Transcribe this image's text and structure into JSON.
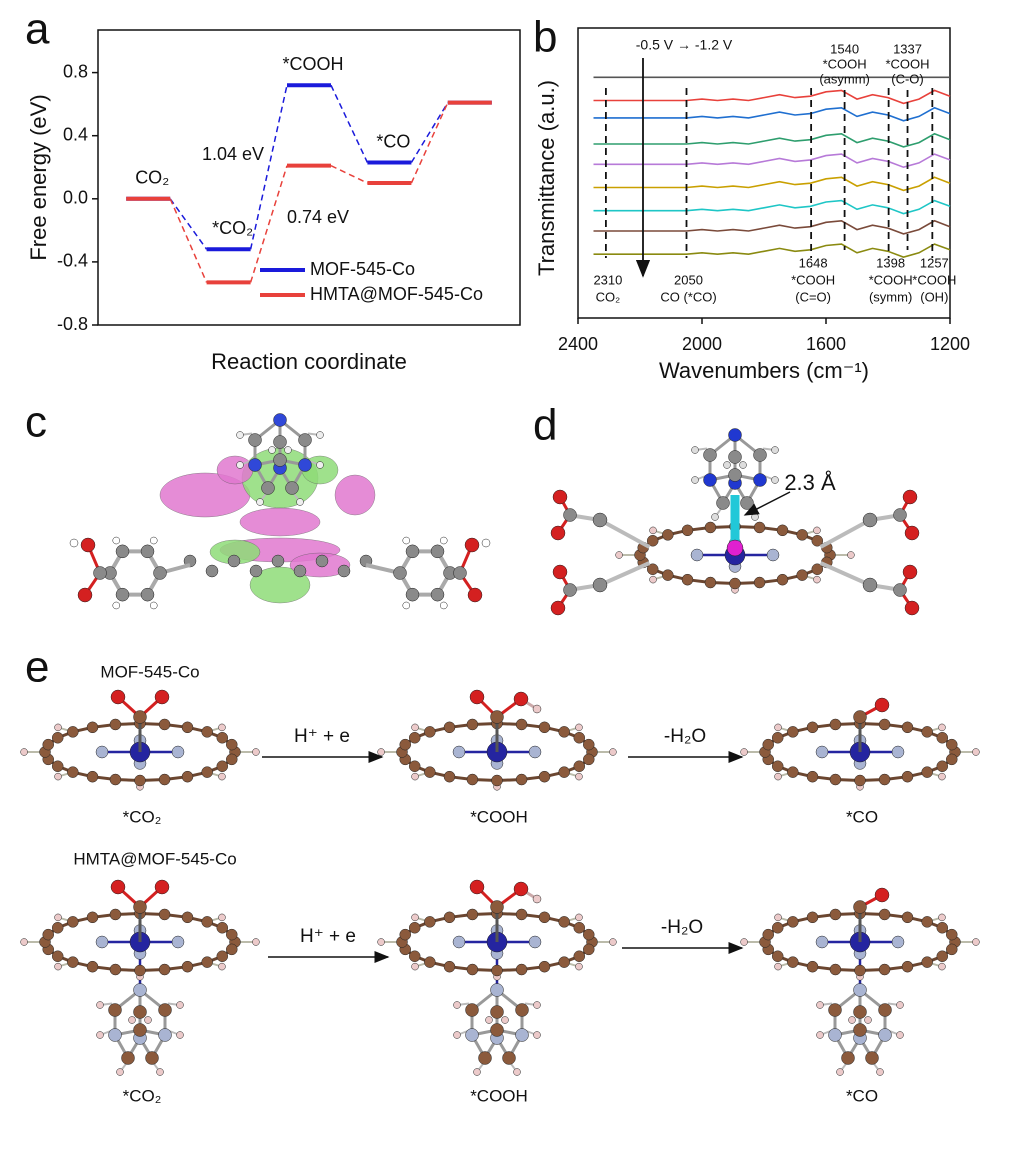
{
  "chart_data": [
    {
      "type": "energy_levels",
      "ylabel": "Free energy (eV)",
      "xlabel": "Reaction coordinate",
      "categories": [
        "CO₂",
        "*CO₂",
        "*COOH",
        "*CO",
        null
      ],
      "series": [
        {
          "name": "MOF-545-Co",
          "color": "#1a1adb",
          "values": [
            0,
            -0.32,
            0.72,
            0.23,
            0.61
          ]
        },
        {
          "name": "HMTA@MOF-545-Co",
          "color": "#e8413b",
          "values": [
            0,
            -0.53,
            0.21,
            0.1,
            0.61
          ]
        }
      ],
      "annotations": [
        "1.04 eV",
        "0.74 eV"
      ],
      "ylim": [
        -0.8,
        1.07
      ],
      "yticks": [
        0.8,
        0.4,
        {
          "value": 0,
          "label": "0.0"
        },
        -0.4,
        -0.8
      ]
    },
    {
      "type": "line",
      "ylabel": "Transmittance (a.u.)",
      "xlabel": "Wavenumbers (cm⁻¹)",
      "annotation": "-0.5 V → -1.2 V",
      "x": [
        2350,
        2300,
        2250,
        2200,
        2150,
        2100,
        2050,
        2000,
        1950,
        1900,
        1850,
        1800,
        1750,
        1700,
        1650,
        1600,
        1550,
        1500,
        1450,
        1400,
        1350,
        1300,
        1250,
        1200
      ],
      "series": [
        {
          "color": "#555555",
          "values": [
            8.3,
            8.3,
            8.3,
            8.3,
            8.3,
            8.3,
            8.3,
            8.3,
            8.3,
            8.3,
            8.3,
            8.3,
            8.3,
            8.3,
            8.3,
            8.3,
            8.3,
            8.3,
            8.3,
            8.3,
            8.3,
            8.3,
            8.3,
            8.3
          ]
        },
        {
          "color": "#e8413b",
          "values": [
            7.5,
            7.5,
            7.5,
            7.5,
            7.5,
            7.5,
            7.5,
            7.55,
            7.5,
            7.55,
            7.5,
            7.6,
            7.7,
            7.6,
            7.65,
            7.8,
            7.85,
            7.55,
            7.7,
            7.6,
            7.4,
            7.55,
            7.85,
            7.65
          ]
        },
        {
          "color": "#1f6fd0",
          "values": [
            6.9,
            6.9,
            6.9,
            6.9,
            6.9,
            6.9,
            6.9,
            6.95,
            6.9,
            6.95,
            6.9,
            7.0,
            7.1,
            7.0,
            7.05,
            7.2,
            7.25,
            6.95,
            7.1,
            7.0,
            6.8,
            6.95,
            7.25,
            7.05
          ]
        },
        {
          "color": "#2e9e6e",
          "values": [
            6.0,
            6.0,
            6.0,
            6.0,
            6.0,
            6.0,
            6.0,
            6.05,
            6.0,
            6.05,
            6.0,
            6.1,
            6.2,
            6.1,
            6.15,
            6.3,
            6.35,
            6.05,
            6.2,
            6.1,
            5.9,
            6.05,
            6.35,
            6.15
          ]
        },
        {
          "color": "#b77ad8",
          "values": [
            5.3,
            5.3,
            5.3,
            5.3,
            5.3,
            5.3,
            5.3,
            5.35,
            5.3,
            5.35,
            5.3,
            5.4,
            5.5,
            5.4,
            5.45,
            5.6,
            5.65,
            5.35,
            5.5,
            5.4,
            5.2,
            5.35,
            5.65,
            5.45
          ]
        },
        {
          "color": "#c9a000",
          "values": [
            4.5,
            4.5,
            4.5,
            4.5,
            4.5,
            4.5,
            4.5,
            4.55,
            4.5,
            4.55,
            4.5,
            4.6,
            4.7,
            4.6,
            4.65,
            4.8,
            4.85,
            4.55,
            4.7,
            4.6,
            4.4,
            4.55,
            4.85,
            4.65
          ]
        },
        {
          "color": "#1ec6c6",
          "values": [
            3.7,
            3.7,
            3.7,
            3.7,
            3.7,
            3.7,
            3.7,
            3.75,
            3.7,
            3.75,
            3.7,
            3.8,
            3.9,
            3.8,
            3.85,
            4.0,
            4.05,
            3.75,
            3.9,
            3.8,
            3.6,
            3.75,
            4.05,
            3.85
          ]
        },
        {
          "color": "#7a4a3a",
          "values": [
            3.0,
            3.0,
            3.0,
            3.0,
            3.0,
            3.0,
            3.0,
            3.05,
            3.0,
            3.05,
            3.0,
            3.1,
            3.2,
            3.1,
            3.15,
            3.3,
            3.35,
            3.05,
            3.2,
            3.1,
            2.9,
            3.05,
            3.35,
            3.15
          ]
        },
        {
          "color": "#8a8a10",
          "values": [
            2.2,
            2.2,
            2.2,
            2.2,
            2.2,
            2.2,
            2.2,
            2.25,
            2.2,
            2.25,
            2.2,
            2.3,
            2.4,
            2.3,
            2.35,
            2.5,
            2.55,
            2.25,
            2.4,
            2.3,
            2.1,
            2.25,
            2.55,
            2.35
          ]
        }
      ],
      "peaks": [
        {
          "value": 2310,
          "label": [
            "2310",
            "CO₂"
          ]
        },
        {
          "value": 2050,
          "label": [
            "2050",
            "CO (*CO)"
          ]
        },
        {
          "value": 1648,
          "label": [
            "1648",
            "*COOH",
            "(C=O)"
          ]
        },
        {
          "value": 1540,
          "label": [
            "1540",
            "*COOH",
            "(asymm)"
          ]
        },
        {
          "value": 1398,
          "label": [
            "1398",
            "*COOH",
            "(symm)"
          ]
        },
        {
          "value": 1337,
          "label": [
            "1337",
            "*COOH",
            "(C-O)"
          ]
        },
        {
          "value": 1257,
          "label": [
            "1257",
            "*COOH",
            "(OH)"
          ]
        }
      ],
      "xlim": [
        2400,
        1200
      ],
      "xticks": [
        2400,
        2000,
        1600,
        1200
      ],
      "ylim": [
        0,
        10
      ]
    }
  ],
  "panels": {
    "labels": [
      "a",
      "b",
      "c",
      "d",
      "e"
    ],
    "d": {
      "distance": "2.3 Å"
    },
    "e": {
      "rows": [
        {
          "name": "MOF-545-Co",
          "states": [
            "*CO₂",
            "*COOH",
            "*CO"
          ],
          "steps": [
            "H⁺ + e",
            "-H₂O"
          ]
        },
        {
          "name": "HMTA@MOF-545-Co",
          "states": [
            "*CO₂",
            "*COOH",
            "*CO"
          ],
          "steps": [
            "H⁺ + e",
            "-H₂O"
          ]
        }
      ]
    }
  }
}
